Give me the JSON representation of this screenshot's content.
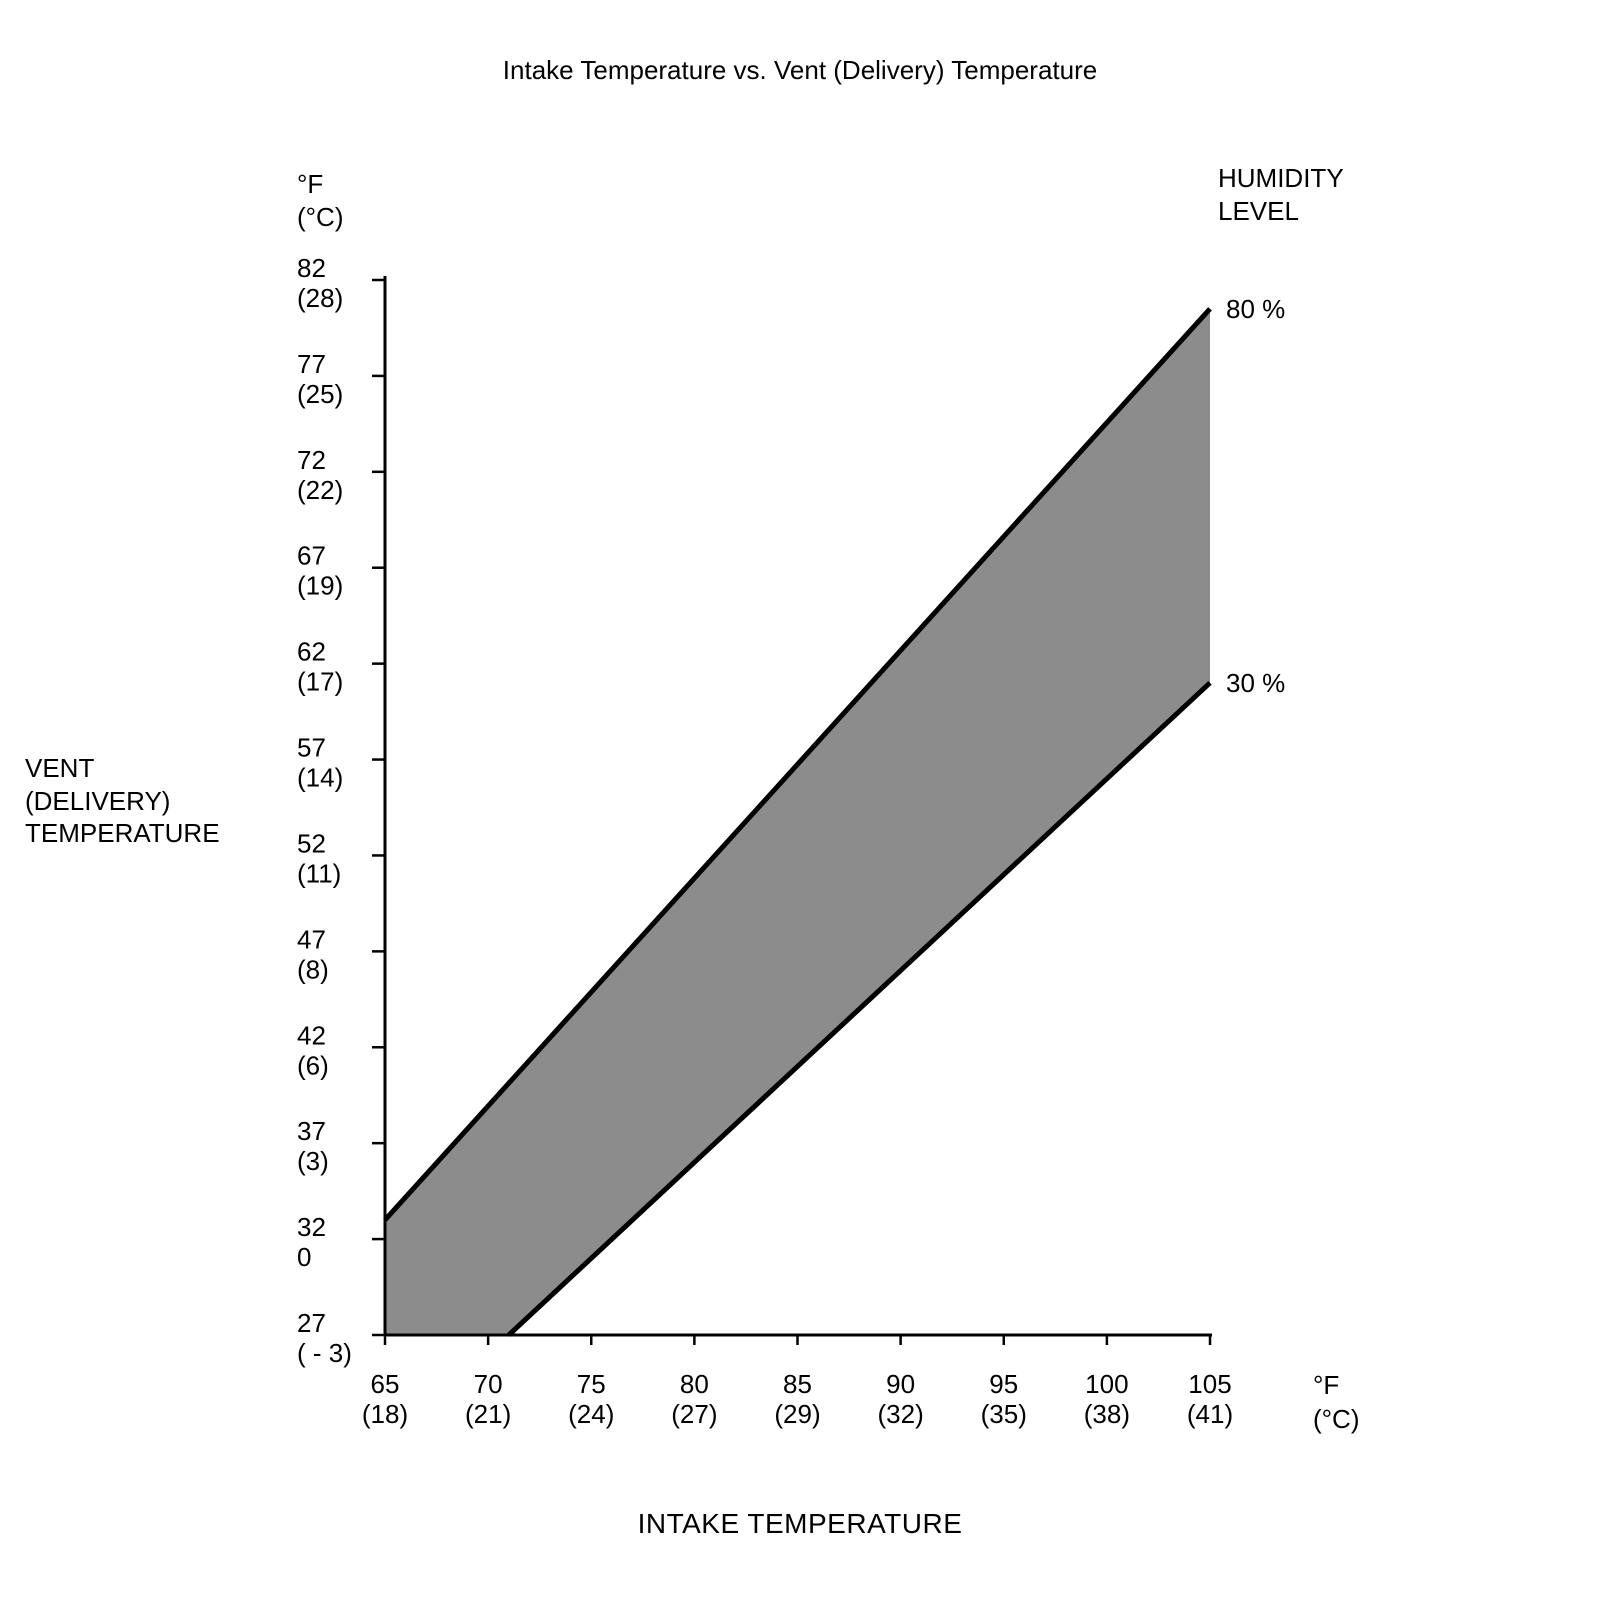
{
  "chart_data": {
    "type": "area",
    "title": "Intake Temperature vs. Vent (Delivery) Temperature",
    "xlabel": "INTAKE TEMPERATURE",
    "ylabel": "VENT (DELIVERY) TEMPERATURE",
    "ylabel_display": "VENT\n(DELIVERY)\nTEMPERATURE",
    "legend_title": "HUMIDITY LEVEL",
    "legend_title_display": "HUMIDITY\nLEVEL",
    "y_axis_unit_display": "°F\n(°C)",
    "x_axis_unit_display": "°F\n(°C)",
    "xlim": [
      65,
      105
    ],
    "ylim": [
      27,
      82
    ],
    "grid": false,
    "legend_position": "top-right",
    "x_ticks": [
      {
        "value": 65,
        "label_f": "65",
        "label_c": "(18)"
      },
      {
        "value": 70,
        "label_f": "70",
        "label_c": "(21)"
      },
      {
        "value": 75,
        "label_f": "75",
        "label_c": "(24)"
      },
      {
        "value": 80,
        "label_f": "80",
        "label_c": "(27)"
      },
      {
        "value": 85,
        "label_f": "85",
        "label_c": "(29)"
      },
      {
        "value": 90,
        "label_f": "90",
        "label_c": "(32)"
      },
      {
        "value": 95,
        "label_f": "95",
        "label_c": "(35)"
      },
      {
        "value": 100,
        "label_f": "100",
        "label_c": "(38)"
      },
      {
        "value": 105,
        "label_f": "105",
        "label_c": "(41)"
      }
    ],
    "y_ticks": [
      {
        "value": 82,
        "label_f": "82",
        "label_c": "(28)"
      },
      {
        "value": 77,
        "label_f": "77",
        "label_c": "(25)"
      },
      {
        "value": 72,
        "label_f": "72",
        "label_c": "(22)"
      },
      {
        "value": 67,
        "label_f": "67",
        "label_c": "(19)"
      },
      {
        "value": 62,
        "label_f": "62",
        "label_c": "(17)"
      },
      {
        "value": 57,
        "label_f": "57",
        "label_c": "(14)"
      },
      {
        "value": 52,
        "label_f": "52",
        "label_c": "(11)"
      },
      {
        "value": 47,
        "label_f": "47",
        "label_c": "(8)"
      },
      {
        "value": 42,
        "label_f": "42",
        "label_c": "(6)"
      },
      {
        "value": 37,
        "label_f": "37",
        "label_c": "(3)"
      },
      {
        "value": 32,
        "label_f": "32",
        "label_c": "0"
      },
      {
        "value": 27,
        "label_f": "27",
        "label_c": "( - 3)"
      }
    ],
    "series": [
      {
        "name": "80 %",
        "x": [
          65,
          105
        ],
        "y": [
          33,
          80.5
        ]
      },
      {
        "name": "30 %",
        "x": [
          71,
          105
        ],
        "y": [
          27,
          61
        ]
      }
    ],
    "band": {
      "points": [
        [
          65,
          33
        ],
        [
          105,
          80.5
        ],
        [
          105,
          61
        ],
        [
          71,
          27
        ],
        [
          65,
          27
        ]
      ],
      "fill": "#8c8c8c"
    },
    "line_color": "#000000",
    "axis_color": "#000000",
    "background_color": "#ffffff"
  }
}
